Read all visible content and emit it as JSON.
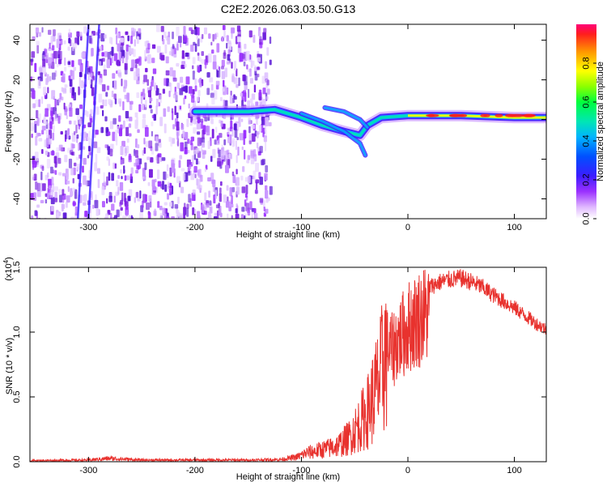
{
  "title": "C2E2.2026.063.03.50.G13",
  "chart_data": [
    {
      "type": "heatmap",
      "title": "C2E2.2026.063.03.50.G13",
      "xlabel": "Height of straight line (km)",
      "ylabel": "Frequency (Hz)",
      "xlim": [
        -355,
        130
      ],
      "ylim": [
        -50,
        48
      ],
      "xticks": [
        -300,
        -200,
        -100,
        0,
        100
      ],
      "yticks": [
        -40,
        -20,
        0,
        20,
        40
      ],
      "xtick_labels": [
        "-300",
        "-200",
        "-100",
        "0",
        "100"
      ],
      "ytick_labels": [
        "-40",
        "-20",
        "0",
        "20",
        "40"
      ],
      "colorbar": {
        "label": "Normalized spectral amplitude",
        "range": [
          0,
          1
        ],
        "ticks": [
          0.0,
          0.2,
          0.4,
          0.6,
          0.8
        ],
        "tick_labels": [
          "0.0",
          "0.2",
          "0.4",
          "0.6",
          "0.8"
        ]
      },
      "ridge": [
        {
          "x": -200,
          "y": 4
        },
        {
          "x": -150,
          "y": 4
        },
        {
          "x": -125,
          "y": 5
        },
        {
          "x": -100,
          "y": 1
        },
        {
          "x": -80,
          "y": -3
        },
        {
          "x": -60,
          "y": -6
        },
        {
          "x": -45,
          "y": -8
        },
        {
          "x": -38,
          "y": -3
        },
        {
          "x": -25,
          "y": 1
        },
        {
          "x": 0,
          "y": 2
        },
        {
          "x": 50,
          "y": 2
        },
        {
          "x": 100,
          "y": 1
        },
        {
          "x": 130,
          "y": 1
        }
      ],
      "branches": [
        [
          {
            "x": -100,
            "y": 3
          },
          {
            "x": -80,
            "y": -1
          },
          {
            "x": -60,
            "y": -6
          },
          {
            "x": -45,
            "y": -12
          },
          {
            "x": -40,
            "y": -18
          }
        ],
        [
          {
            "x": -78,
            "y": 6
          },
          {
            "x": -60,
            "y": 4
          },
          {
            "x": -45,
            "y": 0
          },
          {
            "x": -38,
            "y": -4
          }
        ]
      ]
    },
    {
      "type": "line",
      "xlabel": "Height of straight line (km)",
      "ylabel": "SNR (10 * v/v)",
      "y_multiplier_label": "(x10",
      "y_multiplier_exp": "4",
      "y_multiplier_close": ")",
      "xlim": [
        -355,
        130
      ],
      "ylim": [
        0,
        1.5
      ],
      "xticks": [
        -300,
        -200,
        -100,
        0,
        100
      ],
      "yticks": [
        0.0,
        0.5,
        1.0,
        1.5
      ],
      "xtick_labels": [
        "-300",
        "-200",
        "-100",
        "0",
        "100"
      ],
      "ytick_labels": [
        "0.0",
        "0.5",
        "1.0",
        "1.5"
      ],
      "series": [
        {
          "name": "SNR",
          "color": "#e8322e",
          "points": [
            {
              "x": -355,
              "y": 0.01
            },
            {
              "x": -300,
              "y": 0.015
            },
            {
              "x": -280,
              "y": 0.03
            },
            {
              "x": -250,
              "y": 0.015
            },
            {
              "x": -200,
              "y": 0.015
            },
            {
              "x": -150,
              "y": 0.015
            },
            {
              "x": -120,
              "y": 0.02
            },
            {
              "x": -105,
              "y": 0.04
            },
            {
              "x": -95,
              "y": 0.08
            },
            {
              "x": -85,
              "y": 0.1
            },
            {
              "x": -75,
              "y": 0.12
            },
            {
              "x": -65,
              "y": 0.15
            },
            {
              "x": -55,
              "y": 0.22
            },
            {
              "x": -45,
              "y": 0.35
            },
            {
              "x": -38,
              "y": 0.45
            },
            {
              "x": -32,
              "y": 0.6
            },
            {
              "x": -26,
              "y": 0.75
            },
            {
              "x": -20,
              "y": 1.05
            },
            {
              "x": -15,
              "y": 1.0
            },
            {
              "x": -10,
              "y": 1.1
            },
            {
              "x": -5,
              "y": 1.15
            },
            {
              "x": 0,
              "y": 1.22
            },
            {
              "x": 10,
              "y": 1.3
            },
            {
              "x": 20,
              "y": 1.36
            },
            {
              "x": 30,
              "y": 1.4
            },
            {
              "x": 40,
              "y": 1.42
            },
            {
              "x": 50,
              "y": 1.43
            },
            {
              "x": 60,
              "y": 1.4
            },
            {
              "x": 70,
              "y": 1.36
            },
            {
              "x": 80,
              "y": 1.3
            },
            {
              "x": 90,
              "y": 1.25
            },
            {
              "x": 100,
              "y": 1.2
            },
            {
              "x": 110,
              "y": 1.14
            },
            {
              "x": 120,
              "y": 1.08
            },
            {
              "x": 130,
              "y": 1.03
            }
          ]
        }
      ]
    }
  ]
}
